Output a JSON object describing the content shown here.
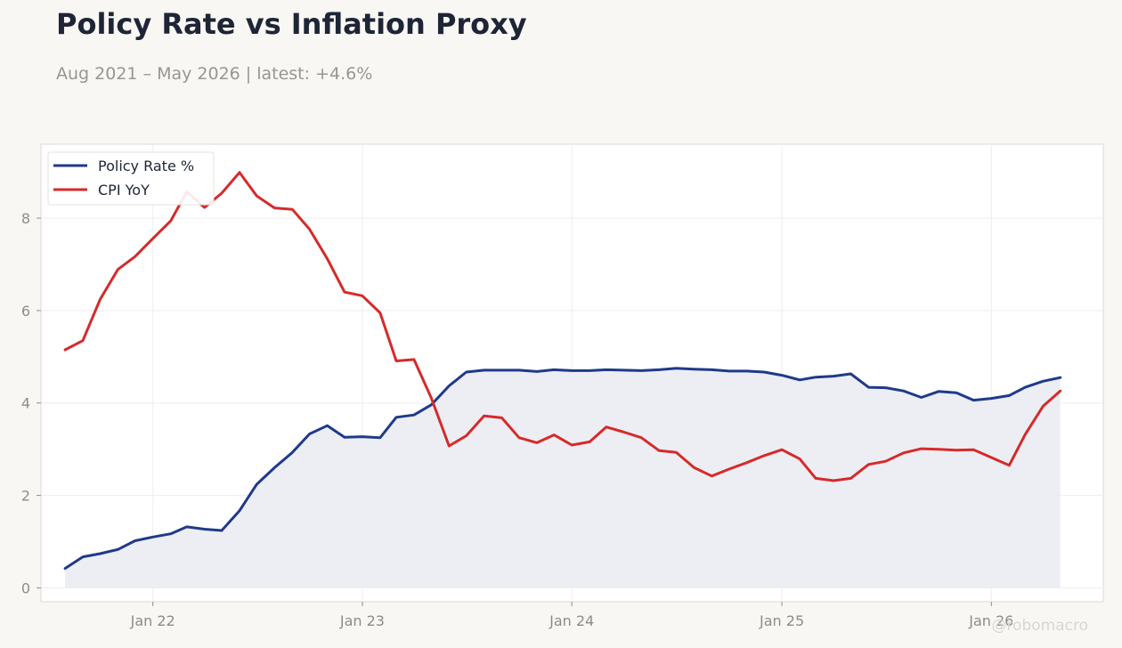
{
  "title": "Policy Rate vs Inflation Proxy",
  "subtitle": "Aug 2021 – May 2026 | latest: +4.6%",
  "watermark": "@robomacro",
  "colors": {
    "page_bg": "#f9f7f4",
    "plot_bg": "#ffffff",
    "grid": "#eeeeee",
    "plot_border": "#dddad5",
    "policy_rate": "#1f3a8a",
    "policy_rate_fill": "#edeef4",
    "cpi": "#d62a2a"
  },
  "chart_data": {
    "type": "line",
    "title": "Policy Rate vs Inflation Proxy",
    "ylim": [
      -0.3,
      9.6
    ],
    "xlim": [
      "2021-06-20",
      "2026-07-15"
    ],
    "grid": true,
    "legend_position": "top-left",
    "y_ticks": [
      0,
      2,
      4,
      6,
      8
    ],
    "x_ticks": [
      {
        "date": "2022-01-01",
        "label": "Jan 22"
      },
      {
        "date": "2023-01-01",
        "label": "Jan 23"
      },
      {
        "date": "2024-01-01",
        "label": "Jan 24"
      },
      {
        "date": "2025-01-01",
        "label": "Jan 25"
      },
      {
        "date": "2026-01-01",
        "label": "Jan 26"
      }
    ],
    "x": [
      "2021-08-01",
      "2021-09-01",
      "2021-10-01",
      "2021-11-01",
      "2021-12-01",
      "2022-01-01",
      "2022-02-01",
      "2022-03-01",
      "2022-04-01",
      "2022-05-01",
      "2022-06-01",
      "2022-07-01",
      "2022-08-01",
      "2022-09-01",
      "2022-10-01",
      "2022-11-01",
      "2022-12-01",
      "2023-01-01",
      "2023-02-01",
      "2023-03-01",
      "2023-04-01",
      "2023-05-01",
      "2023-06-01",
      "2023-07-01",
      "2023-08-01",
      "2023-09-01",
      "2023-10-01",
      "2023-11-01",
      "2023-12-01",
      "2024-01-01",
      "2024-02-01",
      "2024-03-01",
      "2024-04-01",
      "2024-05-01",
      "2024-06-01",
      "2024-07-01",
      "2024-08-01",
      "2024-09-01",
      "2024-10-01",
      "2024-11-01",
      "2024-12-01",
      "2025-01-01",
      "2025-02-01",
      "2025-03-01",
      "2025-04-01",
      "2025-05-01",
      "2025-06-01",
      "2025-07-01",
      "2025-08-01",
      "2025-09-01",
      "2025-10-01",
      "2025-11-01",
      "2025-12-01",
      "2026-01-01",
      "2026-02-01",
      "2026-03-01",
      "2026-04-01",
      "2026-05-01"
    ],
    "series": [
      {
        "name": "Policy Rate %",
        "fill": true,
        "values": [
          0.42,
          0.67,
          0.74,
          0.83,
          1.02,
          1.1,
          1.17,
          1.32,
          1.27,
          1.24,
          1.67,
          2.24,
          2.6,
          2.93,
          3.33,
          3.51,
          3.26,
          3.27,
          3.25,
          3.69,
          3.74,
          3.96,
          4.37,
          4.67,
          4.71,
          4.71,
          4.71,
          4.68,
          4.72,
          4.7,
          4.7,
          4.72,
          4.71,
          4.7,
          4.72,
          4.75,
          4.73,
          4.72,
          4.69,
          4.69,
          4.67,
          4.6,
          4.5,
          4.56,
          4.58,
          4.63,
          4.34,
          4.33,
          4.26,
          4.12,
          4.25,
          4.22,
          4.06,
          4.1,
          4.16,
          4.34,
          4.47,
          4.55
        ]
      },
      {
        "name": "CPI YoY",
        "fill": false,
        "values": [
          5.15,
          5.35,
          6.24,
          6.89,
          7.17,
          7.56,
          7.94,
          8.57,
          8.23,
          8.54,
          8.99,
          8.48,
          8.22,
          8.19,
          7.76,
          7.12,
          6.4,
          6.32,
          5.95,
          4.91,
          4.94,
          4.11,
          3.07,
          3.29,
          3.72,
          3.68,
          3.25,
          3.14,
          3.31,
          3.09,
          3.16,
          3.48,
          3.37,
          3.25,
          2.97,
          2.93,
          2.6,
          2.42,
          2.57,
          2.71,
          2.86,
          2.99,
          2.79,
          2.37,
          2.32,
          2.37,
          2.67,
          2.74,
          2.92,
          3.01,
          3.0,
          2.98,
          2.99,
          2.82,
          2.65,
          3.32,
          3.93,
          4.26
        ]
      }
    ]
  }
}
